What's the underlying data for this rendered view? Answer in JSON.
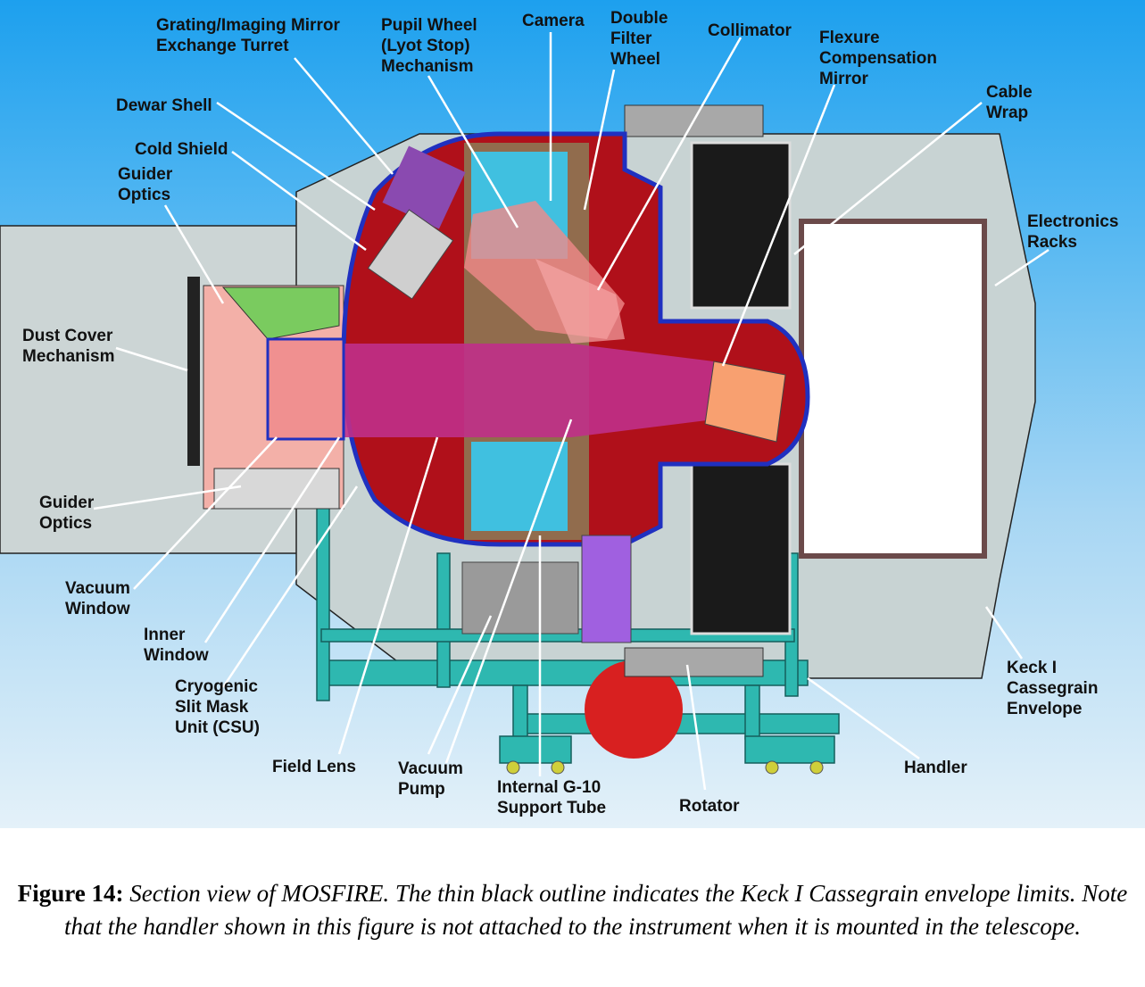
{
  "diagram": {
    "labels": {
      "turret": "Grating/Imaging Mirror\nExchange Turret",
      "pupil": "Pupil Wheel\n(Lyot Stop)\nMechanism",
      "camera": "Camera",
      "filter": "Double\nFilter\nWheel",
      "collimator": "Collimator",
      "flexure": "Flexure\nCompensation\nMirror",
      "cable": "Cable\nWrap",
      "dewar": "Dewar Shell",
      "cold": "Cold Shield",
      "guider_top": "Guider\nOptics",
      "electronics": "Electronics\nRacks",
      "dust": "Dust Cover\nMechanism",
      "guider_bottom": "Guider\nOptics",
      "vacuum_window": "Vacuum\nWindow",
      "inner_window": "Inner\nWindow",
      "csu": "Cryogenic\nSlit Mask\nUnit (CSU)",
      "keck": "Keck I\nCassegrain\nEnvelope",
      "field_lens": "Field Lens",
      "vacuum_pump": "Vacuum\nPump",
      "support": "Internal G-10\nSupport Tube",
      "handler": "Handler",
      "rotator": "Rotator"
    }
  },
  "caption": {
    "figure_label": "Figure 14:",
    "text": " Section view of MOSFIRE.  The thin black outline indicates the Keck I Cassegrain envelope limits.  Note that the handler shown in this figure is not attached to the instrument when it is mounted in the telescope."
  }
}
